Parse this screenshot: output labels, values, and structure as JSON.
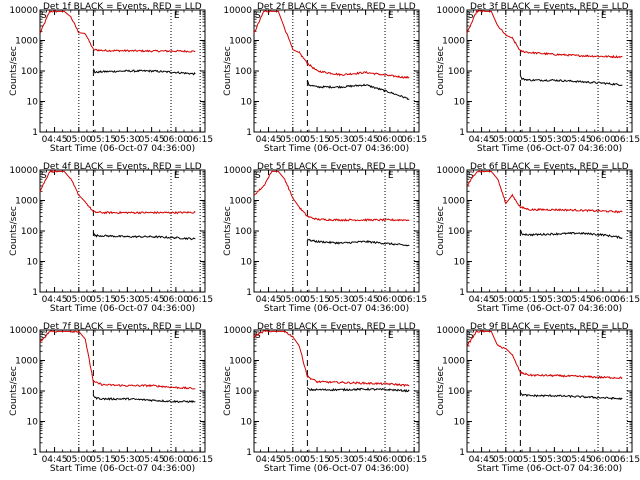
{
  "figure": {
    "background": "#ffffff",
    "events_color": "#000000",
    "lld_color": "#d40000"
  },
  "chart_data": [
    {
      "type": "line",
      "title": "Det 1f BLACK = Events, RED = LLD",
      "xlabel": "Start Time (06-Oct-07 04:36:00)",
      "ylabel": "Counts/sec",
      "x_tick_labels": [
        "04:45",
        "05:00",
        "05:15",
        "05:30",
        "05:45",
        "06:00",
        "06:15"
      ],
      "y_tick_labels": [
        "1",
        "10",
        "100",
        "1000",
        "10000"
      ],
      "y_scale": "log",
      "ylim": [
        1,
        10000
      ],
      "markers": [
        "S",
        "E"
      ],
      "series": [
        {
          "color": "#d40000",
          "x": [
            "04:36",
            "04:42",
            "04:47",
            "04:51",
            "04:55",
            "05:00",
            "05:04",
            "05:09",
            "05:15",
            "05:30",
            "05:45",
            "06:00",
            "06:12"
          ],
          "y": [
            1700,
            9000,
            9000,
            9000,
            6000,
            1800,
            1700,
            500,
            470,
            460,
            450,
            450,
            440
          ]
        },
        {
          "color": "#000000",
          "x": [
            "05:09",
            "05:10",
            "05:15",
            "05:30",
            "05:45",
            "06:00",
            "06:12"
          ],
          "y": [
            120,
            90,
            95,
            100,
            100,
            90,
            80
          ]
        }
      ]
    },
    {
      "type": "line",
      "title": "Det 2f BLACK = Events, RED = LLD",
      "xlabel": "Start Time (06-Oct-07 04:36:00)",
      "ylabel": "Counts/sec",
      "x_tick_labels": [
        "04:45",
        "05:00",
        "05:15",
        "05:30",
        "05:45",
        "06:00",
        "06:15"
      ],
      "y_tick_labels": [
        "1",
        "10",
        "100",
        "1000",
        "10000"
      ],
      "y_scale": "log",
      "ylim": [
        1,
        10000
      ],
      "markers": [
        "S",
        "E"
      ],
      "series": [
        {
          "color": "#d40000",
          "x": [
            "04:36",
            "04:42",
            "04:47",
            "04:51",
            "04:55",
            "05:00",
            "05:04",
            "05:09",
            "05:15",
            "05:30",
            "05:45",
            "06:00",
            "06:12"
          ],
          "y": [
            1700,
            9000,
            9000,
            9000,
            2500,
            500,
            400,
            180,
            100,
            75,
            90,
            70,
            60
          ]
        },
        {
          "color": "#000000",
          "x": [
            "05:09",
            "05:10",
            "05:15",
            "05:30",
            "05:45",
            "06:00",
            "06:12"
          ],
          "y": [
            50,
            35,
            30,
            30,
            35,
            20,
            12
          ]
        }
      ]
    },
    {
      "type": "line",
      "title": "Det 3f BLACK = Events, RED = LLD",
      "xlabel": "Start Time (06-Oct-07 04:36:00)",
      "ylabel": "Counts/sec",
      "x_tick_labels": [
        "04:45",
        "05:00",
        "05:15",
        "05:30",
        "05:45",
        "06:00",
        "06:15"
      ],
      "y_tick_labels": [
        "1",
        "10",
        "100",
        "1000",
        "10000"
      ],
      "y_scale": "log",
      "ylim": [
        1,
        10000
      ],
      "markers": [
        "S",
        "E"
      ],
      "series": [
        {
          "color": "#d40000",
          "x": [
            "04:36",
            "04:42",
            "04:47",
            "04:51",
            "04:55",
            "05:00",
            "05:04",
            "05:09",
            "05:15",
            "05:30",
            "05:45",
            "06:00",
            "06:12"
          ],
          "y": [
            1700,
            9000,
            9000,
            9000,
            3000,
            1500,
            1200,
            450,
            400,
            350,
            320,
            300,
            290
          ]
        },
        {
          "color": "#000000",
          "x": [
            "05:09",
            "05:10",
            "05:15",
            "05:30",
            "05:45",
            "06:00",
            "06:12"
          ],
          "y": [
            70,
            55,
            50,
            50,
            45,
            40,
            35
          ]
        }
      ]
    },
    {
      "type": "line",
      "title": "Det 4f BLACK = Events, RED = LLD",
      "xlabel": "Start Time (06-Oct-07 04:36:00)",
      "ylabel": "Counts/sec",
      "x_tick_labels": [
        "04:45",
        "05:00",
        "05:15",
        "05:30",
        "05:45",
        "06:00",
        "06:15"
      ],
      "y_tick_labels": [
        "1",
        "10",
        "100",
        "1000",
        "10000"
      ],
      "y_scale": "log",
      "ylim": [
        1,
        10000
      ],
      "markers": [
        "S",
        "E"
      ],
      "series": [
        {
          "color": "#d40000",
          "x": [
            "04:36",
            "04:42",
            "04:47",
            "04:51",
            "04:55",
            "05:00",
            "05:04",
            "05:09",
            "05:15",
            "05:30",
            "05:45",
            "06:00",
            "06:12"
          ],
          "y": [
            2000,
            9000,
            9000,
            9000,
            5000,
            1500,
            900,
            420,
            400,
            400,
            400,
            400,
            410
          ]
        },
        {
          "color": "#000000",
          "x": [
            "05:09",
            "05:10",
            "05:15",
            "05:30",
            "05:45",
            "06:00",
            "06:12"
          ],
          "y": [
            90,
            70,
            70,
            65,
            65,
            60,
            55
          ]
        }
      ]
    },
    {
      "type": "line",
      "title": "Det 5f BLACK = Events, RED = LLD",
      "xlabel": "Start Time (06-Oct-07 04:36:00)",
      "ylabel": "Counts/sec",
      "x_tick_labels": [
        "04:45",
        "05:00",
        "05:15",
        "05:30",
        "05:45",
        "06:00",
        "06:15"
      ],
      "y_tick_labels": [
        "1",
        "10",
        "100",
        "1000",
        "10000"
      ],
      "y_scale": "log",
      "ylim": [
        1,
        10000
      ],
      "markers": [
        "S",
        "E"
      ],
      "series": [
        {
          "color": "#d40000",
          "x": [
            "04:36",
            "04:42",
            "04:47",
            "04:51",
            "04:55",
            "05:00",
            "05:04",
            "05:09",
            "05:15",
            "05:30",
            "05:45",
            "06:00",
            "06:12"
          ],
          "y": [
            1500,
            3000,
            9000,
            9000,
            5000,
            1200,
            600,
            300,
            240,
            230,
            230,
            230,
            230
          ]
        },
        {
          "color": "#000000",
          "x": [
            "05:09",
            "05:10",
            "05:15",
            "05:30",
            "05:45",
            "06:00",
            "06:12"
          ],
          "y": [
            55,
            50,
            45,
            40,
            45,
            38,
            33
          ]
        }
      ]
    },
    {
      "type": "line",
      "title": "Det 6f BLACK = Events, RED = LLD",
      "xlabel": "Start Time (06-Oct-07 04:36:00)",
      "ylabel": "Counts/sec",
      "x_tick_labels": [
        "04:45",
        "05:00",
        "05:15",
        "05:30",
        "05:45",
        "06:00",
        "06:15"
      ],
      "y_tick_labels": [
        "1",
        "10",
        "100",
        "1000",
        "10000"
      ],
      "y_scale": "log",
      "ylim": [
        1,
        10000
      ],
      "markers": [
        "S",
        "E"
      ],
      "series": [
        {
          "color": "#d40000",
          "x": [
            "04:36",
            "04:42",
            "04:47",
            "04:51",
            "04:55",
            "05:00",
            "05:04",
            "05:09",
            "05:15",
            "05:30",
            "05:45",
            "06:00",
            "06:12"
          ],
          "y": [
            3000,
            9000,
            9000,
            9000,
            5000,
            800,
            1500,
            600,
            500,
            500,
            480,
            450,
            420
          ]
        },
        {
          "color": "#000000",
          "x": [
            "05:09",
            "05:10",
            "05:15",
            "05:30",
            "05:45",
            "06:00",
            "06:12"
          ],
          "y": [
            110,
            80,
            75,
            80,
            85,
            75,
            60
          ]
        }
      ]
    },
    {
      "type": "line",
      "title": "Det 7f BLACK = Events, RED = LLD",
      "xlabel": "Start Time (06-Oct-07 04:36:00)",
      "ylabel": "Counts/sec",
      "x_tick_labels": [
        "04:45",
        "05:00",
        "05:15",
        "05:30",
        "05:45",
        "06:00",
        "06:15"
      ],
      "y_tick_labels": [
        "1",
        "10",
        "100",
        "1000",
        "10000"
      ],
      "y_scale": "log",
      "ylim": [
        1,
        10000
      ],
      "markers": [
        "S",
        "E"
      ],
      "series": [
        {
          "color": "#d40000",
          "x": [
            "04:36",
            "04:42",
            "04:47",
            "04:51",
            "04:55",
            "05:00",
            "05:04",
            "05:09",
            "05:15",
            "05:30",
            "05:45",
            "06:00",
            "06:12"
          ],
          "y": [
            4000,
            9000,
            9000,
            9000,
            9000,
            9000,
            5000,
            200,
            160,
            150,
            150,
            130,
            120
          ]
        },
        {
          "color": "#000000",
          "x": [
            "05:09",
            "05:10",
            "05:15",
            "05:30",
            "05:45",
            "06:00",
            "06:12"
          ],
          "y": [
            70,
            60,
            55,
            55,
            50,
            45,
            45
          ]
        }
      ]
    },
    {
      "type": "line",
      "title": "Det 8f BLACK = Events, RED = LLD",
      "xlabel": "Start Time (06-Oct-07 04:36:00)",
      "ylabel": "Counts/sec",
      "x_tick_labels": [
        "04:45",
        "05:00",
        "05:15",
        "05:30",
        "05:45",
        "06:00",
        "06:15"
      ],
      "y_tick_labels": [
        "1",
        "10",
        "100",
        "1000",
        "10000"
      ],
      "y_scale": "log",
      "ylim": [
        1,
        10000
      ],
      "markers": [
        "S",
        "E"
      ],
      "series": [
        {
          "color": "#d40000",
          "x": [
            "04:36",
            "04:42",
            "04:47",
            "04:51",
            "04:55",
            "05:00",
            "05:04",
            "05:09",
            "05:15",
            "05:30",
            "05:45",
            "06:00",
            "06:12"
          ],
          "y": [
            6000,
            9000,
            9000,
            9000,
            9000,
            6000,
            3000,
            300,
            200,
            190,
            180,
            170,
            150
          ]
        },
        {
          "color": "#000000",
          "x": [
            "05:09",
            "05:10",
            "05:15",
            "05:30",
            "05:45",
            "06:00",
            "06:12"
          ],
          "y": [
            130,
            110,
            110,
            110,
            115,
            110,
            100
          ]
        }
      ]
    },
    {
      "type": "line",
      "title": "Det 9f BLACK = Events, RED = LLD",
      "xlabel": "Start Time (06-Oct-07 04:36:00)",
      "ylabel": "Counts/sec",
      "x_tick_labels": [
        "04:45",
        "05:00",
        "05:15",
        "05:30",
        "05:45",
        "06:00",
        "06:15"
      ],
      "y_tick_labels": [
        "1",
        "10",
        "100",
        "1000",
        "10000"
      ],
      "y_scale": "log",
      "ylim": [
        1,
        10000
      ],
      "markers": [
        "S",
        "E"
      ],
      "series": [
        {
          "color": "#d40000",
          "x": [
            "04:36",
            "04:42",
            "04:47",
            "04:51",
            "04:55",
            "05:00",
            "05:04",
            "05:09",
            "05:15",
            "05:30",
            "05:45",
            "06:00",
            "06:12"
          ],
          "y": [
            3000,
            9000,
            9000,
            9000,
            3000,
            2500,
            1500,
            400,
            330,
            320,
            300,
            280,
            270
          ]
        },
        {
          "color": "#000000",
          "x": [
            "05:09",
            "05:10",
            "05:15",
            "05:30",
            "05:45",
            "06:00",
            "06:12"
          ],
          "y": [
            90,
            75,
            70,
            70,
            65,
            60,
            55
          ]
        }
      ]
    }
  ]
}
